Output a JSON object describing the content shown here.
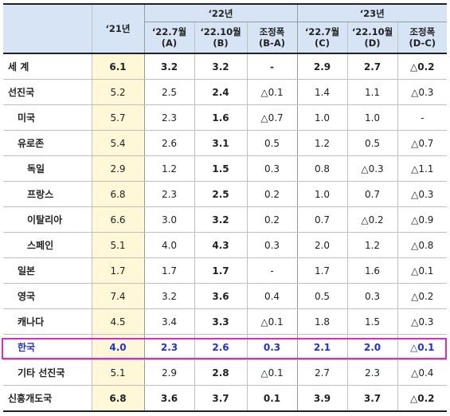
{
  "header": {
    "col_21": "‘21년",
    "group_22": "‘22년",
    "group_23": "‘23년",
    "sub_22_jul": "‘22.7월",
    "sub_22_jul_tag": "(A)",
    "sub_22_oct": "‘22.10월",
    "sub_22_oct_tag": "(B)",
    "sub_22_adj": "조정폭",
    "sub_22_adj_tag": "(B-A)",
    "sub_23_jul": "‘22.7월",
    "sub_23_jul_tag": "(C)",
    "sub_23_oct": "‘22.10월",
    "sub_23_oct_tag": "(D)",
    "sub_23_adj": "조정폭",
    "sub_23_adj_tag": "(D-C)"
  },
  "rows": [
    {
      "name": "세  계",
      "indent": 0,
      "v21": "6.1",
      "a": "3.2",
      "b": "3.2",
      "ba": "-",
      "c": "2.9",
      "d": "2.7",
      "dc": "△0.2",
      "bold": true
    },
    {
      "name": "선진국",
      "indent": 0,
      "v21": "5.2",
      "a": "2.5",
      "b": "2.4",
      "ba": "△0.1",
      "c": "1.4",
      "d": "1.1",
      "dc": "△0.3",
      "bold": false
    },
    {
      "name": "미국",
      "indent": 1,
      "v21": "5.7",
      "a": "2.3",
      "b": "1.6",
      "ba": "△0.7",
      "c": "1.0",
      "d": "1.0",
      "dc": "-",
      "bold": false
    },
    {
      "name": "유로존",
      "indent": 1,
      "v21": "5.4",
      "a": "2.6",
      "b": "3.1",
      "ba": "0.5",
      "c": "1.2",
      "d": "0.5",
      "dc": "△0.7",
      "bold": false
    },
    {
      "name": "독일",
      "indent": 2,
      "v21": "2.9",
      "a": "1.2",
      "b": "1.5",
      "ba": "0.3",
      "c": "0.8",
      "d": "△0.3",
      "dc": "△1.1",
      "bold": false
    },
    {
      "name": "프랑스",
      "indent": 2,
      "v21": "6.8",
      "a": "2.3",
      "b": "2.5",
      "ba": "0.2",
      "c": "1.0",
      "d": "0.7",
      "dc": "△0.3",
      "bold": false
    },
    {
      "name": "이탈리아",
      "indent": 2,
      "v21": "6.6",
      "a": "3.0",
      "b": "3.2",
      "ba": "0.2",
      "c": "0.7",
      "d": "△0.2",
      "dc": "△0.9",
      "bold": false
    },
    {
      "name": "스페인",
      "indent": 2,
      "v21": "5.1",
      "a": "4.0",
      "b": "4.3",
      "ba": "0.3",
      "c": "2.0",
      "d": "1.2",
      "dc": "△0.8",
      "bold": false
    },
    {
      "name": "일본",
      "indent": 1,
      "v21": "1.7",
      "a": "1.7",
      "b": "1.7",
      "ba": "-",
      "c": "1.7",
      "d": "1.6",
      "dc": "△0.1",
      "bold": false
    },
    {
      "name": "영국",
      "indent": 1,
      "v21": "7.4",
      "a": "3.2",
      "b": "3.6",
      "ba": "0.4",
      "c": "0.5",
      "d": "0.3",
      "dc": "△0.2",
      "bold": false
    },
    {
      "name": "캐나다",
      "indent": 1,
      "v21": "4.5",
      "a": "3.4",
      "b": "3.3",
      "ba": "△0.1",
      "c": "1.8",
      "d": "1.5",
      "dc": "△0.3",
      "bold": false
    },
    {
      "name": "한국",
      "indent": 1,
      "v21": "4.0",
      "a": "2.3",
      "b": "2.6",
      "ba": "0.3",
      "c": "2.1",
      "d": "2.0",
      "dc": "△0.1",
      "bold": true,
      "highlight": true
    },
    {
      "name": "기타 선진국",
      "indent": 1,
      "v21": "5.1",
      "a": "2.9",
      "b": "2.8",
      "ba": "△0.1",
      "c": "2.7",
      "d": "2.3",
      "dc": "△0.4",
      "bold": false
    },
    {
      "name": "신흥개도국",
      "indent": 0,
      "v21": "6.8",
      "a": "3.6",
      "b": "3.7",
      "ba": "0.1",
      "c": "3.9",
      "d": "3.7",
      "dc": "△0.2",
      "bold": true
    }
  ],
  "colors": {
    "header_bg": "#d6e4f5",
    "col21_bg": "#fef8d8",
    "highlight_text": "#1e35c8",
    "highlight_box": "#e028c8"
  }
}
